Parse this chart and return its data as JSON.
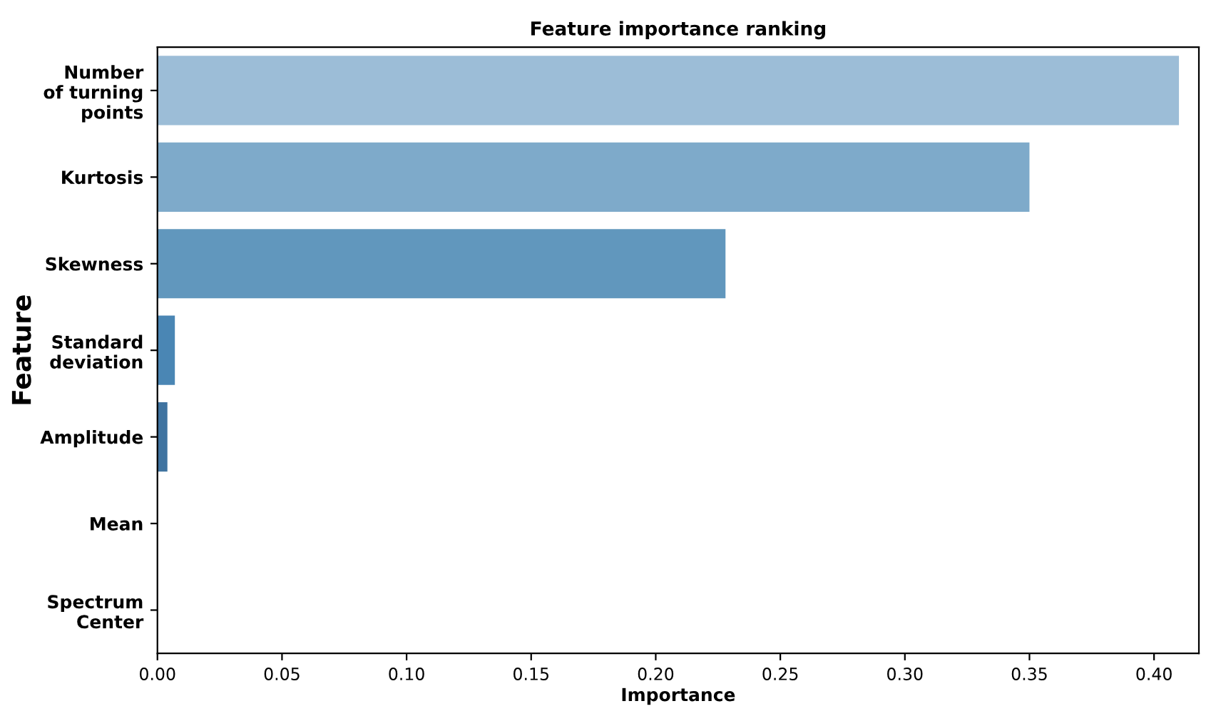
{
  "chart_data": {
    "type": "bar",
    "orientation": "horizontal",
    "title": "Feature importance ranking",
    "xlabel": "Importance",
    "ylabel": "Feature",
    "categories": [
      "Number\nof turning\npoints",
      "Kurtosis",
      "Skewness",
      "Standard\ndeviation",
      "Amplitude",
      "Mean",
      "Spectrum\nCenter"
    ],
    "values": [
      0.41,
      0.35,
      0.228,
      0.007,
      0.004,
      0,
      0
    ],
    "colors": [
      "#9cbdd7",
      "#7eaaca",
      "#6197bd",
      "#4a86b4",
      "#3f73a0",
      "#35628a",
      "#2b5275"
    ],
    "xlim": [
      0,
      0.418
    ],
    "xticks": [
      {
        "value": 0,
        "label": "0.00"
      },
      0.05,
      {
        "value": 0.1,
        "label": "0.10"
      },
      0.15,
      {
        "value": 0.2,
        "label": "0.20"
      },
      0.25,
      {
        "value": 0.3,
        "label": "0.30"
      },
      0.35,
      {
        "value": 0.4,
        "label": "0.40"
      }
    ],
    "grid": false,
    "legend": false
  }
}
